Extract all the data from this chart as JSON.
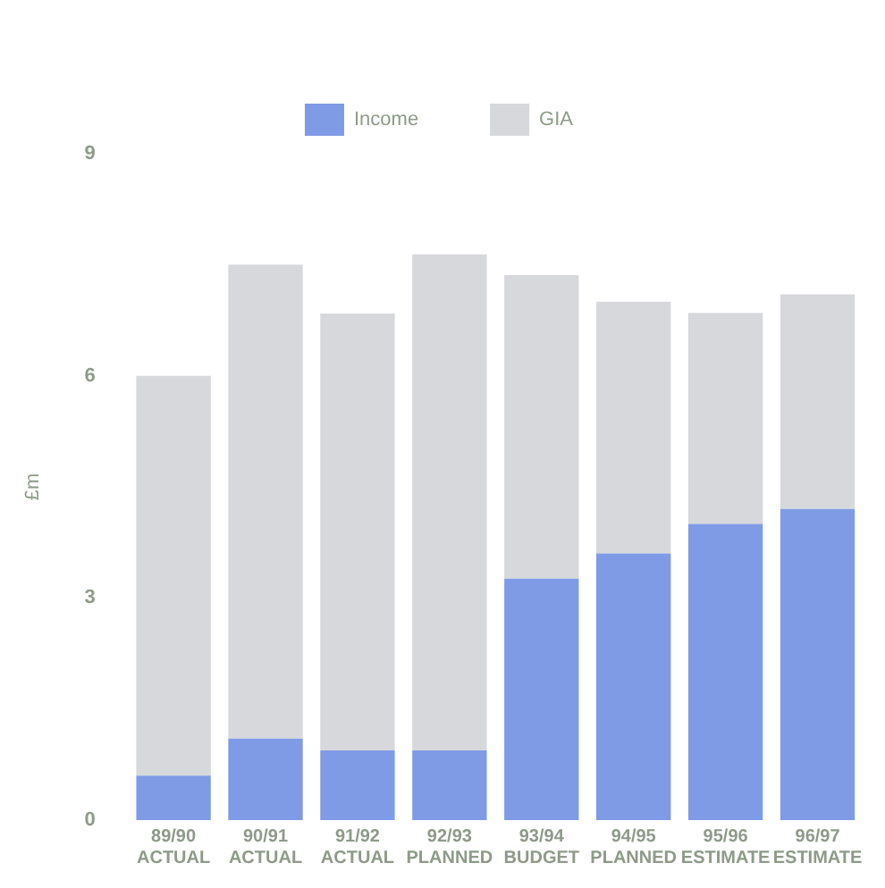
{
  "chart_data": {
    "type": "bar",
    "stacked": true,
    "ylabel": "£m",
    "categories": [
      "89/90 ACTUAL",
      "90/91 ACTUAL",
      "91/92 ACTUAL",
      "92/93 PLANNED",
      "93/94 BUDGET",
      "94/95 PLANNED",
      "95/96 ESTIMATE",
      "96/97 ESTIMATE"
    ],
    "series": [
      {
        "name": "Income",
        "color": "#7f9be6",
        "values": [
          0.6,
          1.1,
          0.94,
          0.94,
          3.26,
          3.6,
          4.0,
          4.2
        ]
      },
      {
        "name": "GIA",
        "color": "#d6d8db",
        "values": [
          5.4,
          6.4,
          5.9,
          6.7,
          4.1,
          3.4,
          2.85,
          2.9
        ]
      }
    ],
    "ylim": [
      0,
      9
    ],
    "yticks": [
      0,
      3,
      6,
      9
    ],
    "grid": false,
    "legend": "top"
  }
}
